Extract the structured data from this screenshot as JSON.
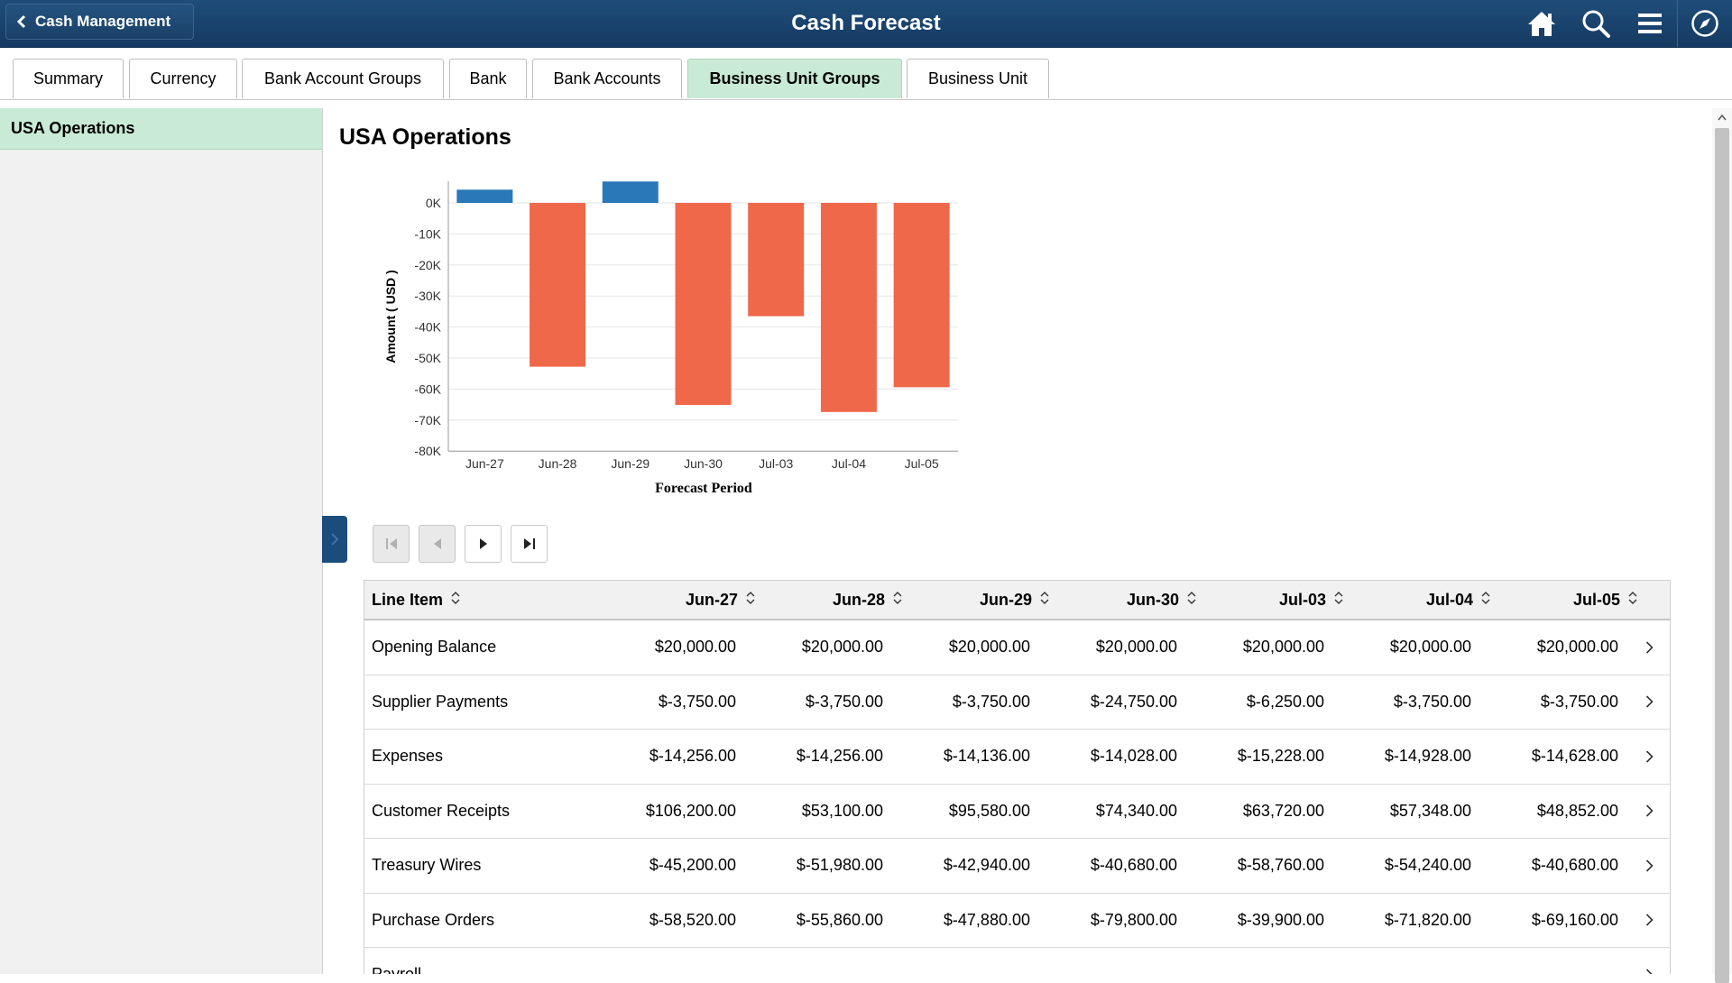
{
  "header": {
    "back_label": "Cash Management",
    "title": "Cash Forecast",
    "icons": [
      "home-icon",
      "search-icon",
      "menu-icon",
      "navbar-compass-icon"
    ]
  },
  "tabs": [
    {
      "label": "Summary"
    },
    {
      "label": "Currency"
    },
    {
      "label": "Bank Account Groups"
    },
    {
      "label": "Bank"
    },
    {
      "label": "Bank Accounts"
    },
    {
      "label": "Business Unit Groups",
      "active": true
    },
    {
      "label": "Business Unit"
    }
  ],
  "left_panel": {
    "items": [
      {
        "label": "USA Operations",
        "selected": true
      }
    ]
  },
  "main": {
    "title": "USA Operations"
  },
  "chart_data": {
    "type": "bar",
    "categories": [
      "Jun-27",
      "Jun-28",
      "Jun-29",
      "Jun-30",
      "Jul-03",
      "Jul-04",
      "Jul-05"
    ],
    "values": [
      4268,
      -52796,
      6904,
      -65118,
      -36518,
      -67390,
      -59416
    ],
    "xlabel": "Forecast Period",
    "ylabel": "Amount ( USD )",
    "ylim": [
      -80000,
      7000
    ],
    "yticks": [
      0,
      -10000,
      -20000,
      -30000,
      -40000,
      -50000,
      -60000,
      -70000,
      -80000
    ],
    "ytick_labels": [
      "0K",
      "-10K",
      "-20K",
      "-30K",
      "-40K",
      "-50K",
      "-60K",
      "-70K",
      "-80K"
    ],
    "colors": {
      "positive": "#2a78b7",
      "negative": "#ef6849"
    },
    "grid": true,
    "legend": "none"
  },
  "grid": {
    "columns": [
      "Line Item",
      "Jun-27",
      "Jun-28",
      "Jun-29",
      "Jun-30",
      "Jul-03",
      "Jul-04",
      "Jul-05"
    ],
    "rows": [
      {
        "label": "Opening Balance",
        "values": [
          "$20,000.00",
          "$20,000.00",
          "$20,000.00",
          "$20,000.00",
          "$20,000.00",
          "$20,000.00",
          "$20,000.00"
        ]
      },
      {
        "label": "Supplier Payments",
        "values": [
          "$-3,750.00",
          "$-3,750.00",
          "$-3,750.00",
          "$-24,750.00",
          "$-6,250.00",
          "$-3,750.00",
          "$-3,750.00"
        ]
      },
      {
        "label": "Expenses",
        "values": [
          "$-14,256.00",
          "$-14,256.00",
          "$-14,136.00",
          "$-14,028.00",
          "$-15,228.00",
          "$-14,928.00",
          "$-14,628.00"
        ]
      },
      {
        "label": "Customer Receipts",
        "values": [
          "$106,200.00",
          "$53,100.00",
          "$95,580.00",
          "$74,340.00",
          "$63,720.00",
          "$57,348.00",
          "$48,852.00"
        ]
      },
      {
        "label": "Treasury Wires",
        "values": [
          "$-45,200.00",
          "$-51,980.00",
          "$-42,940.00",
          "$-40,680.00",
          "$-58,760.00",
          "$-54,240.00",
          "$-40,680.00"
        ]
      },
      {
        "label": "Purchase Orders",
        "values": [
          "$-58,520.00",
          "$-55,860.00",
          "$-47,880.00",
          "$-79,800.00",
          "$-39,900.00",
          "$-71,820.00",
          "$-69,160.00"
        ]
      },
      {
        "label": "Payroll",
        "values": [
          "",
          "",
          "",
          "",
          "",
          "",
          ""
        ]
      }
    ]
  }
}
